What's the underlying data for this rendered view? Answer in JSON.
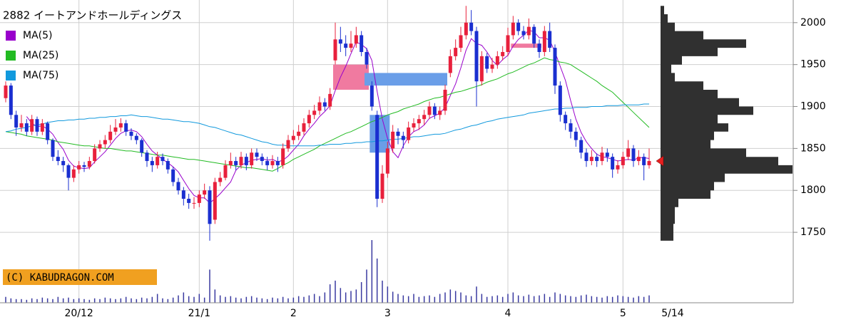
{
  "chart_data": {
    "type": "candlestick",
    "title": "2882 イートアンドホールディングス",
    "watermark": "(C) KABUDRAGON.COM",
    "categories": [
      null,
      null,
      null,
      null,
      null,
      null,
      null,
      null,
      null,
      null,
      null,
      null,
      null,
      null,
      "20/12",
      null,
      null,
      null,
      null,
      null,
      null,
      null,
      null,
      null,
      null,
      null,
      null,
      null,
      null,
      null,
      null,
      null,
      null,
      null,
      null,
      null,
      null,
      "21/1",
      null,
      null,
      null,
      null,
      null,
      null,
      null,
      null,
      null,
      null,
      null,
      null,
      null,
      null,
      null,
      null,
      null,
      "2",
      null,
      null,
      null,
      null,
      null,
      null,
      null,
      null,
      null,
      null,
      null,
      null,
      null,
      null,
      null,
      null,
      null,
      "3",
      null,
      null,
      null,
      null,
      null,
      null,
      null,
      null,
      null,
      null,
      null,
      null,
      null,
      null,
      null,
      null,
      null,
      null,
      null,
      null,
      null,
      null,
      "4",
      null,
      null,
      null,
      null,
      null,
      null,
      null,
      null,
      null,
      null,
      null,
      null,
      null,
      null,
      null,
      null,
      null,
      null,
      null,
      null,
      null,
      "5",
      null,
      null,
      null,
      null,
      "5/14"
    ],
    "ohlc": [
      [
        1910,
        1930,
        1905,
        1925
      ],
      [
        1925,
        1928,
        1885,
        1890
      ],
      [
        1890,
        1895,
        1865,
        1875
      ],
      [
        1875,
        1890,
        1870,
        1880
      ],
      [
        1880,
        1885,
        1865,
        1870
      ],
      [
        1870,
        1890,
        1866,
        1885
      ],
      [
        1885,
        1888,
        1865,
        1870
      ],
      [
        1870,
        1885,
        1866,
        1880
      ],
      [
        1880,
        1882,
        1855,
        1860
      ],
      [
        1860,
        1862,
        1835,
        1840
      ],
      [
        1840,
        1848,
        1830,
        1835
      ],
      [
        1835,
        1840,
        1822,
        1830
      ],
      [
        1830,
        1832,
        1800,
        1815
      ],
      [
        1815,
        1830,
        1810,
        1825
      ],
      [
        1825,
        1835,
        1820,
        1830
      ],
      [
        1830,
        1834,
        1822,
        1828
      ],
      [
        1828,
        1840,
        1825,
        1835
      ],
      [
        1835,
        1855,
        1832,
        1850
      ],
      [
        1850,
        1860,
        1846,
        1855
      ],
      [
        1855,
        1866,
        1850,
        1860
      ],
      [
        1860,
        1878,
        1856,
        1870
      ],
      [
        1870,
        1885,
        1866,
        1875
      ],
      [
        1875,
        1886,
        1870,
        1880
      ],
      [
        1880,
        1884,
        1865,
        1870
      ],
      [
        1870,
        1874,
        1860,
        1865
      ],
      [
        1865,
        1868,
        1855,
        1860
      ],
      [
        1860,
        1862,
        1840,
        1845
      ],
      [
        1845,
        1848,
        1828,
        1835
      ],
      [
        1835,
        1840,
        1822,
        1830
      ],
      [
        1830,
        1846,
        1826,
        1840
      ],
      [
        1840,
        1844,
        1830,
        1835
      ],
      [
        1835,
        1838,
        1820,
        1825
      ],
      [
        1825,
        1828,
        1805,
        1810
      ],
      [
        1810,
        1815,
        1795,
        1800
      ],
      [
        1800,
        1804,
        1782,
        1790
      ],
      [
        1790,
        1796,
        1778,
        1785
      ],
      [
        1785,
        1792,
        1778,
        1785
      ],
      [
        1785,
        1800,
        1780,
        1795
      ],
      [
        1795,
        1808,
        1790,
        1800
      ],
      [
        1800,
        1805,
        1740,
        1760
      ],
      [
        1765,
        1815,
        1760,
        1810
      ],
      [
        1810,
        1822,
        1805,
        1815
      ],
      [
        1815,
        1836,
        1812,
        1830
      ],
      [
        1830,
        1845,
        1826,
        1835
      ],
      [
        1835,
        1840,
        1824,
        1830
      ],
      [
        1830,
        1846,
        1826,
        1840
      ],
      [
        1840,
        1844,
        1824,
        1830
      ],
      [
        1830,
        1850,
        1826,
        1845
      ],
      [
        1845,
        1850,
        1835,
        1840
      ],
      [
        1840,
        1844,
        1830,
        1835
      ],
      [
        1835,
        1840,
        1824,
        1830
      ],
      [
        1830,
        1842,
        1826,
        1835
      ],
      [
        1835,
        1840,
        1822,
        1830
      ],
      [
        1830,
        1856,
        1826,
        1850
      ],
      [
        1850,
        1866,
        1846,
        1860
      ],
      [
        1860,
        1872,
        1855,
        1865
      ],
      [
        1865,
        1878,
        1860,
        1870
      ],
      [
        1870,
        1886,
        1866,
        1880
      ],
      [
        1880,
        1896,
        1875,
        1890
      ],
      [
        1890,
        1902,
        1885,
        1895
      ],
      [
        1895,
        1912,
        1890,
        1905
      ],
      [
        1905,
        1910,
        1895,
        1900
      ],
      [
        1900,
        1922,
        1896,
        1915
      ],
      [
        1955,
        2000,
        1950,
        1980
      ],
      [
        1980,
        1995,
        1965,
        1975
      ],
      [
        1975,
        1985,
        1960,
        1970
      ],
      [
        1970,
        1990,
        1965,
        1975
      ],
      [
        1975,
        1995,
        1970,
        1985
      ],
      [
        1985,
        1990,
        1960,
        1965
      ],
      [
        1965,
        1970,
        1945,
        1950
      ],
      [
        1925,
        1930,
        1895,
        1900
      ],
      [
        1890,
        1895,
        1780,
        1790
      ],
      [
        1790,
        1830,
        1785,
        1820
      ],
      [
        1820,
        1858,
        1815,
        1850
      ],
      [
        1850,
        1878,
        1845,
        1870
      ],
      [
        1870,
        1874,
        1855,
        1865
      ],
      [
        1865,
        1870,
        1850,
        1860
      ],
      [
        1860,
        1882,
        1856,
        1875
      ],
      [
        1875,
        1886,
        1870,
        1880
      ],
      [
        1880,
        1890,
        1872,
        1885
      ],
      [
        1885,
        1896,
        1878,
        1890
      ],
      [
        1890,
        1906,
        1885,
        1900
      ],
      [
        1900,
        1904,
        1885,
        1890
      ],
      [
        1890,
        1900,
        1884,
        1895
      ],
      [
        1895,
        1926,
        1890,
        1920
      ],
      [
        1940,
        1968,
        1935,
        1960
      ],
      [
        1960,
        1980,
        1955,
        1970
      ],
      [
        1970,
        1995,
        1965,
        1985
      ],
      [
        1985,
        2020,
        1980,
        2000
      ],
      [
        2000,
        2015,
        1985,
        1990
      ],
      [
        1990,
        1995,
        1900,
        1930
      ],
      [
        1930,
        1966,
        1925,
        1960
      ],
      [
        1960,
        1964,
        1940,
        1945
      ],
      [
        1945,
        1958,
        1940,
        1950
      ],
      [
        1950,
        1966,
        1945,
        1960
      ],
      [
        1960,
        1972,
        1955,
        1965
      ],
      [
        1965,
        1994,
        1960,
        1985
      ],
      [
        1985,
        2008,
        1980,
        2000
      ],
      [
        2000,
        2004,
        1985,
        1990
      ],
      [
        1990,
        1996,
        1980,
        1985
      ],
      [
        1985,
        2005,
        1980,
        1995
      ],
      [
        1995,
        1998,
        1970,
        1975
      ],
      [
        1975,
        1980,
        1958,
        1965
      ],
      [
        1965,
        1996,
        1960,
        1990
      ],
      [
        1990,
        2000,
        1965,
        1970
      ],
      [
        1970,
        1974,
        1915,
        1925
      ],
      [
        1925,
        1930,
        1882,
        1890
      ],
      [
        1890,
        1894,
        1872,
        1880
      ],
      [
        1880,
        1885,
        1862,
        1870
      ],
      [
        1870,
        1875,
        1852,
        1860
      ],
      [
        1860,
        1864,
        1838,
        1845
      ],
      [
        1845,
        1850,
        1828,
        1835
      ],
      [
        1835,
        1848,
        1830,
        1840
      ],
      [
        1840,
        1844,
        1828,
        1835
      ],
      [
        1835,
        1852,
        1830,
        1845
      ],
      [
        1845,
        1850,
        1834,
        1840
      ],
      [
        1840,
        1844,
        1815,
        1825
      ],
      [
        1825,
        1836,
        1820,
        1830
      ],
      [
        1830,
        1846,
        1826,
        1840
      ],
      [
        1840,
        1860,
        1836,
        1850
      ],
      [
        1850,
        1854,
        1828,
        1835
      ],
      [
        1835,
        1848,
        1830,
        1840
      ],
      [
        1840,
        1844,
        1812,
        1830
      ],
      [
        1830,
        1850,
        1826,
        1835
      ]
    ],
    "up_color": "#e8203c",
    "down_color": "#1a2fd0",
    "series": [
      {
        "name": "MA(5)",
        "color": "#9900cc",
        "values": [
          null,
          null,
          null,
          null,
          1888,
          1880,
          1876,
          1877,
          1873,
          1867,
          1857,
          1849,
          1836,
          1829,
          1827,
          1826,
          1827,
          1834,
          1840,
          1846,
          1854,
          1862,
          1868,
          1871,
          1872,
          1870,
          1864,
          1855,
          1847,
          1842,
          1837,
          1833,
          1828,
          1822,
          1812,
          1802,
          1794,
          1791,
          1791,
          1785,
          1790,
          1796,
          1803,
          1810,
          1824,
          1830,
          1833,
          1836,
          1837,
          1838,
          1836,
          1837,
          1834,
          1836,
          1841,
          1848,
          1855,
          1865,
          1873,
          1880,
          1888,
          1894,
          1901,
          1919,
          1935,
          1948,
          1963,
          1977,
          1974,
          1969,
          1955,
          1918,
          1885,
          1862,
          1846,
          1839,
          1853,
          1864,
          1870,
          1873,
          1878,
          1886,
          1889,
          1892,
          1899,
          1913,
          1927,
          1946,
          1967,
          1981,
          1975,
          1973,
          1965,
          1955,
          1949,
          1956,
          1961,
          1972,
          1980,
          1985,
          1991,
          1989,
          1982,
          1982,
          1979,
          1965,
          1948,
          1931,
          1907,
          1885,
          1869,
          1858,
          1850,
          1843,
          1840,
          1839,
          1837,
          1835,
          1836,
          1837,
          1836,
          1839,
          1839,
          1838
        ]
      },
      {
        "name": "MA(25)",
        "color": "#22bb22",
        "values": [
          1870,
          1869,
          1868,
          1867,
          1865,
          1864,
          1863,
          1862,
          1861,
          1860,
          1858,
          1857,
          1856,
          1855,
          1854,
          1853,
          1853,
          1852,
          1851,
          1850,
          1850,
          1849,
          1848,
          1847,
          1847,
          1846,
          1845,
          1844,
          1843,
          1842,
          1842,
          1841,
          1840,
          1839,
          1838,
          1837,
          1837,
          1836,
          1835,
          1834,
          1833,
          1832,
          1831,
          1830,
          1829,
          1828,
          1827,
          1827,
          1826,
          1825,
          1824,
          1823,
          1826,
          1830,
          1833,
          1837,
          1840,
          1843,
          1846,
          1849,
          1853,
          1856,
          1859,
          1862,
          1865,
          1868,
          1870,
          1873,
          1876,
          1879,
          1882,
          1884,
          1887,
          1890,
          1892,
          1894,
          1897,
          1899,
          1901,
          1903,
          1906,
          1908,
          1910,
          1911,
          1913,
          1915,
          1917,
          1918,
          1920,
          1922,
          1924,
          1926,
          1929,
          1931,
          1933,
          1936,
          1939,
          1941,
          1944,
          1947,
          1950,
          1952,
          1955,
          1958,
          1956,
          1955,
          1953,
          1952,
          1950,
          1946,
          1942,
          1938,
          1934,
          1930,
          1925,
          1921,
          1917,
          1911,
          1905,
          1899,
          1893,
          1887,
          1881,
          1875
        ]
      },
      {
        "name": "MA(75)",
        "color": "#1199dd",
        "values": [
          1870,
          1871,
          1873,
          1874,
          1875,
          1877,
          1878,
          1879,
          1881,
          1882,
          1883,
          1883,
          1884,
          1884,
          1885,
          1885,
          1886,
          1886,
          1887,
          1887,
          1888,
          1888,
          1889,
          1889,
          1890,
          1889,
          1888,
          1888,
          1887,
          1886,
          1885,
          1885,
          1884,
          1883,
          1882,
          1882,
          1881,
          1880,
          1878,
          1876,
          1875,
          1873,
          1871,
          1869,
          1867,
          1866,
          1864,
          1862,
          1860,
          1858,
          1857,
          1855,
          1854,
          1854,
          1853,
          1853,
          1853,
          1853,
          1853,
          1853,
          1854,
          1854,
          1855,
          1855,
          1855,
          1856,
          1856,
          1857,
          1857,
          1858,
          1858,
          1859,
          1859,
          1860,
          1861,
          1861,
          1862,
          1863,
          1864,
          1864,
          1865,
          1866,
          1867,
          1867,
          1868,
          1870,
          1872,
          1873,
          1875,
          1877,
          1878,
          1880,
          1882,
          1883,
          1885,
          1886,
          1887,
          1888,
          1889,
          1890,
          1892,
          1893,
          1894,
          1895,
          1896,
          1897,
          1897,
          1898,
          1898,
          1899,
          1899,
          1899,
          1900,
          1900,
          1900,
          1901,
          1901,
          1901,
          1902,
          1902,
          1902,
          1902,
          1903,
          1903
        ]
      }
    ],
    "volume": [
      8,
      6,
      5,
      5,
      4,
      6,
      5,
      7,
      6,
      5,
      8,
      6,
      7,
      5,
      6,
      5,
      4,
      6,
      5,
      7,
      6,
      5,
      6,
      8,
      6,
      5,
      7,
      6,
      8,
      12,
      6,
      5,
      7,
      10,
      14,
      9,
      8,
      12,
      7,
      45,
      18,
      10,
      8,
      9,
      7,
      6,
      8,
      9,
      7,
      6,
      5,
      7,
      6,
      8,
      6,
      7,
      9,
      8,
      10,
      12,
      9,
      14,
      25,
      30,
      20,
      14,
      16,
      18,
      28,
      45,
      85,
      60,
      30,
      22,
      15,
      12,
      10,
      9,
      12,
      8,
      9,
      10,
      8,
      12,
      14,
      18,
      16,
      14,
      10,
      9,
      22,
      12,
      8,
      9,
      10,
      8,
      12,
      14,
      10,
      9,
      11,
      9,
      10,
      12,
      8,
      14,
      12,
      10,
      9,
      8,
      10,
      11,
      9,
      8,
      7,
      9,
      8,
      10,
      9,
      8,
      7,
      9,
      8,
      10
    ],
    "volume_color": "#3a3aa0",
    "profile": {
      "bins": [
        1740,
        1750,
        1760,
        1770,
        1780,
        1790,
        1800,
        1810,
        1820,
        1830,
        1840,
        1850,
        1860,
        1870,
        1880,
        1890,
        1900,
        1910,
        1920,
        1930,
        1940,
        1950,
        1960,
        1970,
        1980,
        1990,
        2000,
        2010,
        2020
      ],
      "counts": [
        18,
        18,
        20,
        20,
        25,
        70,
        75,
        90,
        185,
        165,
        120,
        70,
        75,
        95,
        80,
        130,
        110,
        80,
        60,
        20,
        15,
        30,
        80,
        120,
        60,
        20,
        10,
        5
      ],
      "color": "#303030"
    },
    "windows": [
      {
        "from": 63,
        "to": 69,
        "low": 1920,
        "high": 1950,
        "color": "#f07aa0"
      },
      {
        "from": 69,
        "to": 84,
        "low": 1925,
        "high": 1940,
        "color": "#6a9ee8"
      },
      {
        "from": 70,
        "to": 73,
        "low": 1845,
        "high": 1890,
        "color": "#6a9ee8"
      },
      {
        "from": 97,
        "to": 102,
        "low": 1970,
        "high": 1975,
        "color": "#f07aa0"
      }
    ],
    "marker_color": "#e82020",
    "ylim": [
      1666,
      2027
    ],
    "yticks": [
      1750,
      1800,
      1850,
      1900,
      1950,
      2000
    ],
    "grid": true
  }
}
